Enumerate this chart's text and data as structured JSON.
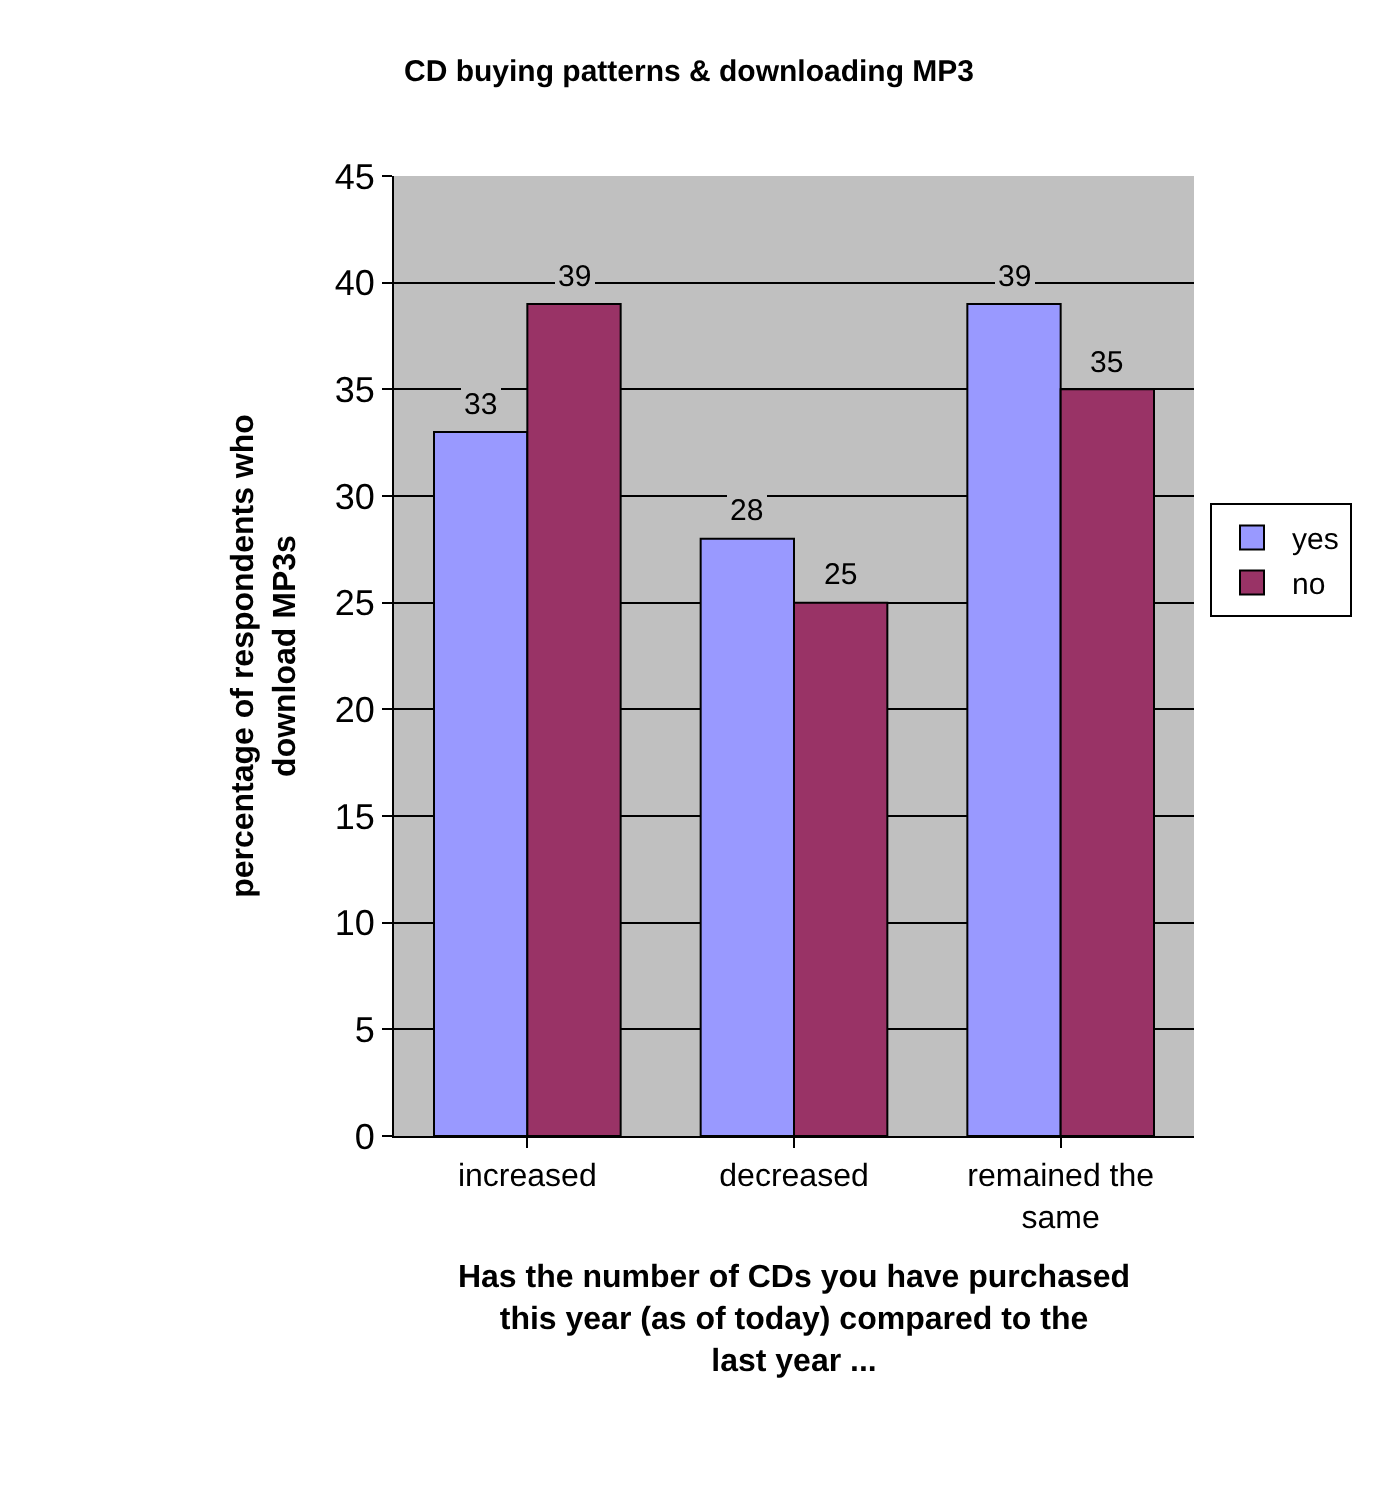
{
  "chart_data": {
    "type": "bar",
    "title": "CD buying patterns & downloading MP3",
    "xlabel": "Has the number of CDs you have purchased this year (as of today) compared to the  last year ...",
    "ylabel": "percentage of respondents who download MP3s",
    "categories": [
      "increased",
      "decreased",
      "remained the same"
    ],
    "series": [
      {
        "name": "yes",
        "color": "#9999ff",
        "values": [
          33,
          28,
          39
        ]
      },
      {
        "name": "no",
        "color": "#993366",
        "values": [
          39,
          25,
          35
        ]
      }
    ],
    "ylim": [
      0,
      45
    ],
    "yticks": [
      0,
      5,
      10,
      15,
      20,
      25,
      30,
      35,
      40,
      45
    ],
    "grid": "y",
    "legend": "right",
    "data_labels": true
  }
}
